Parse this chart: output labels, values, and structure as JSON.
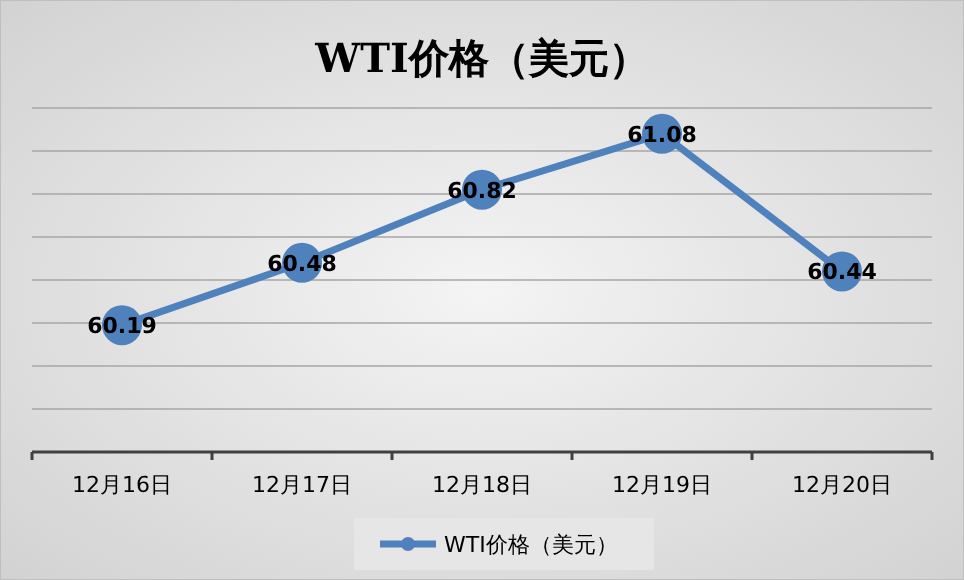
{
  "chart_data": {
    "type": "line",
    "title": "WTI价格（美元）",
    "categories": [
      "12月16日",
      "12月17日",
      "12月18日",
      "12月19日",
      "12月20日"
    ],
    "series": [
      {
        "name": "WTI价格（美元）",
        "color": "#4f81bd",
        "values": [
          60.19,
          60.48,
          60.82,
          61.08,
          60.44
        ]
      }
    ],
    "ylim": [
      59.6,
      61.2
    ],
    "yticks": [
      {
        "value": 59.6,
        "label": null
      },
      {
        "value": 59.8,
        "label": null
      },
      {
        "value": 60.0,
        "label": null
      },
      {
        "value": 60.2,
        "label": null
      },
      {
        "value": 60.4,
        "label": null
      },
      {
        "value": 60.6,
        "label": null
      },
      {
        "value": 60.8,
        "label": null
      },
      {
        "value": 61.0,
        "label": null
      },
      {
        "value": 61.2,
        "label": null
      }
    ],
    "tick_labels": "x",
    "grid": "y",
    "legend": "bottom",
    "marker": "circle",
    "line_style": "solid",
    "data_labels": true
  }
}
